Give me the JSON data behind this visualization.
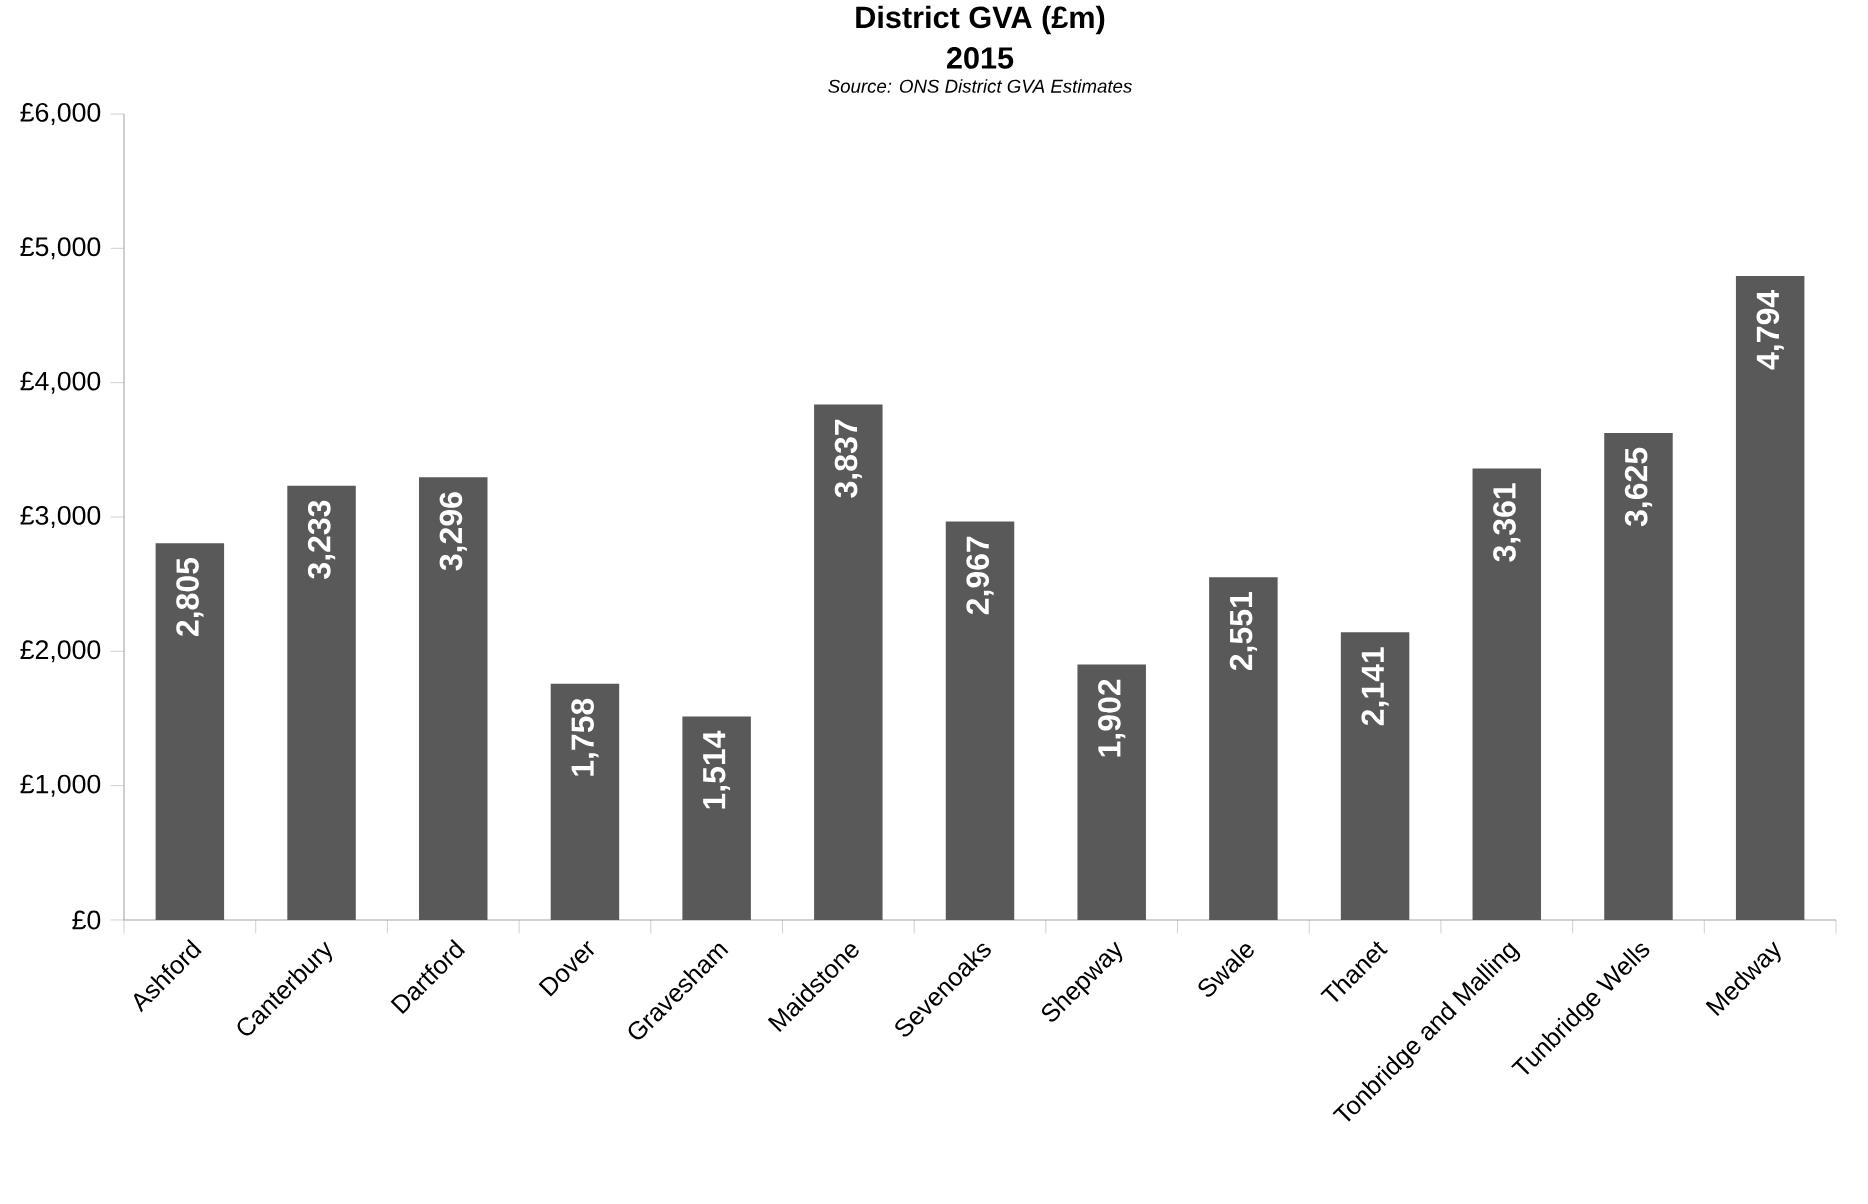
{
  "chart_data": {
    "type": "bar",
    "title": "District GVA (£m)",
    "subtitle": "2015",
    "annotations": [
      "Source: ONS District GVA Estimates"
    ],
    "categories": [
      "Ashford",
      "Canterbury",
      "Dartford",
      "Dover",
      "Gravesham",
      "Maidstone",
      "Sevenoaks",
      "Shepway",
      "Swale",
      "Thanet",
      "Tonbridge and Malling",
      "Tunbridge Wells",
      "Medway"
    ],
    "values": [
      2805,
      3233,
      3296,
      1758,
      1514,
      3837,
      2967,
      1902,
      2551,
      2141,
      3361,
      3625,
      4794
    ],
    "value_labels": [
      "2,805",
      "3,233",
      "3,296",
      "1,758",
      "1,514",
      "3,837",
      "2,967",
      "1,902",
      "2,551",
      "2,141",
      "3,361",
      "3,625",
      "4,794"
    ],
    "color": "#595959",
    "ylim": [
      0,
      6000
    ],
    "yticks": [
      {
        "value": 0,
        "label": "£0"
      },
      {
        "value": 1000,
        "label": "£1,000"
      },
      {
        "value": 2000,
        "label": "£2,000"
      },
      {
        "value": 3000,
        "label": "£3,000"
      },
      {
        "value": 4000,
        "label": "£4,000"
      },
      {
        "value": 5000,
        "label": "£5,000"
      },
      {
        "value": 6000,
        "label": "£6,000"
      }
    ]
  }
}
